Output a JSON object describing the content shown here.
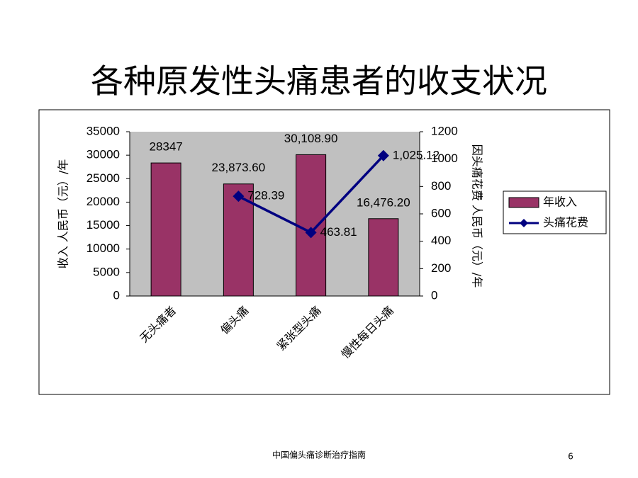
{
  "title": "各种原发性头痛患者的收支状况",
  "chart_data": {
    "type": "bar",
    "categories": [
      "无头痛者",
      "偏头痛",
      "紧张型头痛",
      "慢性每日头痛"
    ],
    "series": [
      {
        "name": "年收入",
        "type": "bar",
        "color": "#993366",
        "values": [
          28347,
          23873.6,
          30108.9,
          16476.2
        ],
        "value_labels": [
          "28347",
          "23,873.60",
          "30,108.90",
          "16,476.20"
        ]
      },
      {
        "name": "头痛花费",
        "type": "line",
        "axis": "y2",
        "color": "#000080",
        "values": [
          null,
          728.39,
          463.81,
          1025.12
        ],
        "value_labels": [
          null,
          "728.39",
          "463.81",
          "1,025.12"
        ]
      }
    ],
    "ylabel": "收入 人民币（元）/年",
    "y2label": "因头痛花费  人民币（元）/年",
    "ylim": [
      0,
      35000
    ],
    "yticks": [
      0,
      5000,
      10000,
      15000,
      20000,
      25000,
      30000,
      35000
    ],
    "y2lim": [
      0,
      1200
    ],
    "y2ticks": [
      0,
      200,
      400,
      600,
      800,
      1000,
      1200
    ],
    "legend": "right"
  },
  "footer": {
    "text": "中国偏头痛诊断治疗指南",
    "page": "6"
  }
}
